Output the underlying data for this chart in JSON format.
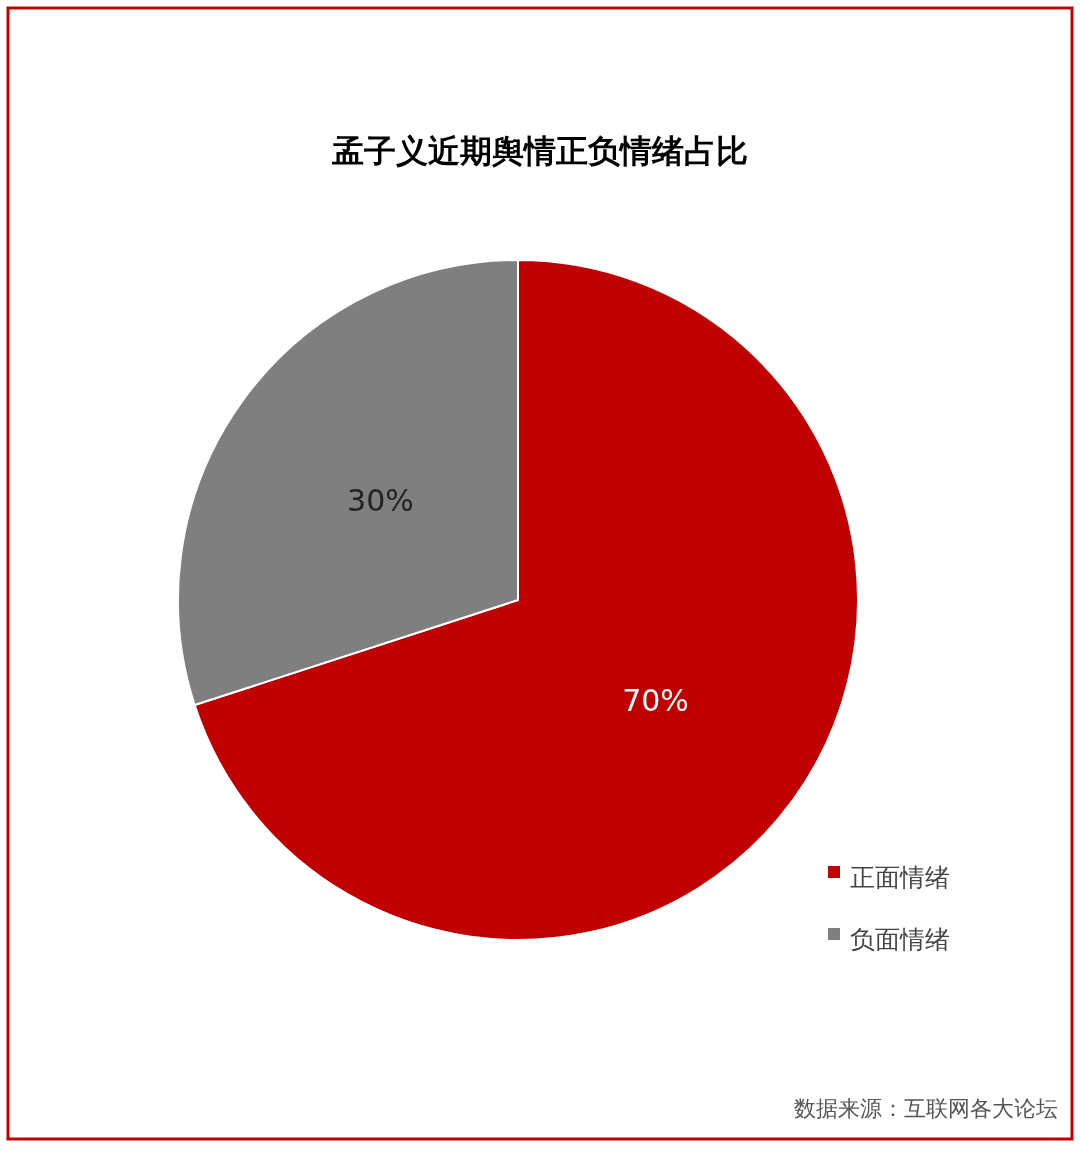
{
  "chart_data": {
    "type": "pie",
    "title": "孟子义近期舆情正负情绪占比",
    "categories": [
      "正面情绪",
      "负面情绪"
    ],
    "values": [
      70,
      30
    ],
    "colors": [
      "#c00000",
      "#7f7f7f"
    ],
    "value_labels": [
      "70%",
      "30%"
    ],
    "legend": "right",
    "annotations": [
      "数据来源：互联网各大论坛"
    ]
  }
}
